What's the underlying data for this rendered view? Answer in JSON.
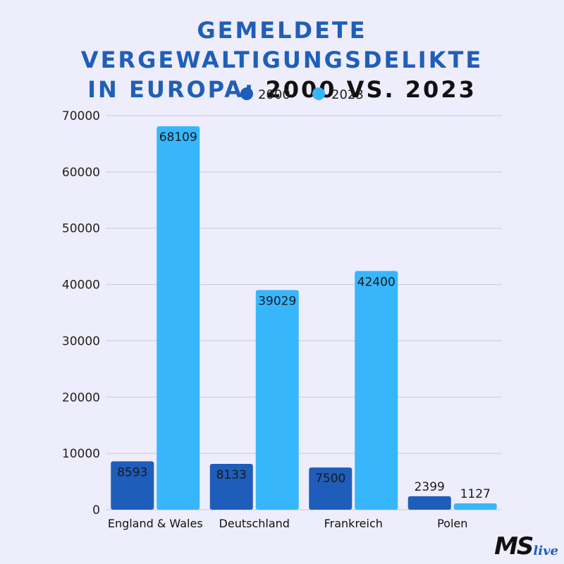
{
  "title": {
    "line1": "GEMELDETE VERGEWALTIGUNGSDELIKTE",
    "line2_blue": "IN EUROPA:",
    "line2_dark": "2000 VS. 2023"
  },
  "logo": {
    "main": "MS",
    "sub": "live"
  },
  "colors": {
    "series_2000": "#1f5dbb",
    "series_2023": "#38b6fb",
    "grid": "#c9c9d8",
    "background": "#eeedfb"
  },
  "chart_data": {
    "type": "bar",
    "categories": [
      "England & Wales",
      "Deutschland",
      "Frankreich",
      "Polen"
    ],
    "series": [
      {
        "name": "2000",
        "values": [
          8593,
          8133,
          7500,
          2399
        ]
      },
      {
        "name": "2023",
        "values": [
          68109,
          39029,
          42400,
          1127
        ]
      }
    ],
    "ylim": [
      0,
      70000
    ],
    "yticks": [
      0,
      10000,
      20000,
      30000,
      40000,
      50000,
      60000,
      70000
    ],
    "legend_position": "top-center",
    "grid": true
  }
}
